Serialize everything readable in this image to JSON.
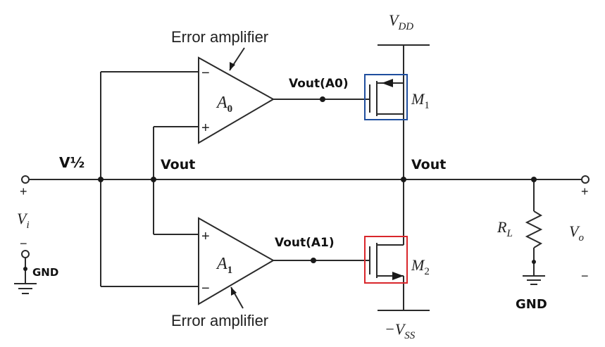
{
  "labels": {
    "vdd": "V",
    "vdd_sub": "DD",
    "vss_prefix": "−V",
    "vss_sub": "SS",
    "error_amp_top": "Error amplifier",
    "error_amp_bottom": "Error amplifier",
    "a0": "A",
    "a0_sub": "0",
    "a1": "A",
    "a1_sub": "1",
    "m1": "M",
    "m1_sub": "1",
    "m2": "M",
    "m2_sub": "2",
    "vi": "V",
    "vi_sub": "i",
    "vo": "V",
    "vo_sub": "o",
    "rl": "R",
    "rl_sub": "L",
    "plus": "+",
    "minus": "−"
  },
  "handwritten": {
    "v_half": "V½",
    "vout_left": "Vout",
    "vout_right": "Vout",
    "vout_a0": "Vout(A0)",
    "vout_a1": "Vout(A1)",
    "gnd_left": "GND",
    "gnd_right": "GND"
  },
  "highlights": {
    "m1_box_color": "#1f4e9e",
    "m2_box_color": "#d9262b"
  }
}
